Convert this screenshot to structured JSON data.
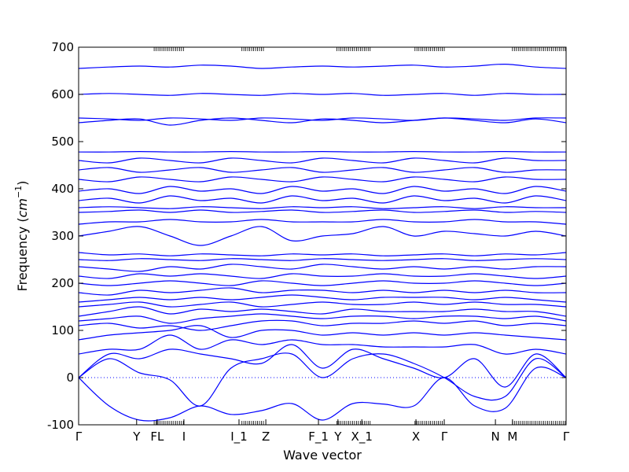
{
  "chart_data": {
    "type": "line",
    "title": "",
    "xlabel": "Wave vector",
    "ylabel_main": "Frequency (",
    "ylabel_unit": "cm",
    "ylabel_exp": "−1",
    "ylabel_close": ")",
    "ylim": [
      -100,
      700
    ],
    "yticks": [
      -100,
      0,
      100,
      200,
      300,
      400,
      500,
      600,
      700
    ],
    "xlim": [
      0,
      1
    ],
    "grid": false,
    "line_color": "#0000ff",
    "zero_line": {
      "y": 0,
      "style": "dotted",
      "color": "#0000ff"
    },
    "high_symmetry_points": [
      {
        "label": "Γ",
        "x": 0.0
      },
      {
        "label": "Y",
        "x": 0.119
      },
      {
        "label": "FL",
        "x": 0.161
      },
      {
        "label": "I",
        "x": 0.216
      },
      {
        "label": "I_1",
        "x": 0.329
      },
      {
        "label": "Z",
        "x": 0.384
      },
      {
        "label": "F_1",
        "x": 0.492
      },
      {
        "label": "Y",
        "x": 0.532
      },
      {
        "label": "X_1",
        "x": 0.581
      },
      {
        "label": "X",
        "x": 0.692
      },
      {
        "label": "Γ",
        "x": 0.75
      },
      {
        "label": "N",
        "x": 0.855
      },
      {
        "label": "M",
        "x": 0.89
      },
      {
        "label": "Γ",
        "x": 1.0
      }
    ],
    "minor_tick_regions": [
      [
        0.155,
        0.215
      ],
      [
        0.335,
        0.38
      ],
      [
        0.53,
        0.6
      ],
      [
        0.69,
        0.75
      ],
      [
        0.89,
        1.0
      ]
    ],
    "x": [
      0.0,
      0.0625,
      0.125,
      0.1875,
      0.25,
      0.3125,
      0.375,
      0.4375,
      0.5,
      0.5625,
      0.625,
      0.6875,
      0.75,
      0.8125,
      0.875,
      0.9375,
      1.0
    ],
    "series": [
      {
        "values": [
          0,
          -60,
          -90,
          -85,
          -60,
          -78,
          -70,
          -55,
          -90,
          -55,
          -56,
          -60,
          0,
          -60,
          -65,
          20,
          0
        ]
      },
      {
        "values": [
          0,
          40,
          10,
          -5,
          -60,
          20,
          40,
          50,
          0,
          40,
          50,
          30,
          0,
          -40,
          -40,
          40,
          0
        ]
      },
      {
        "values": [
          0,
          50,
          40,
          60,
          50,
          40,
          30,
          70,
          20,
          60,
          40,
          20,
          0,
          40,
          -20,
          50,
          0
        ]
      },
      {
        "values": [
          50,
          60,
          60,
          90,
          60,
          80,
          70,
          80,
          70,
          70,
          65,
          65,
          65,
          70,
          50,
          60,
          50
        ]
      },
      {
        "values": [
          80,
          90,
          95,
          100,
          110,
          85,
          100,
          100,
          90,
          95,
          90,
          95,
          90,
          95,
          90,
          85,
          80
        ]
      },
      {
        "values": [
          110,
          115,
          105,
          110,
          100,
          110,
          120,
          120,
          110,
          115,
          115,
          120,
          115,
          120,
          110,
          115,
          110
        ]
      },
      {
        "values": [
          120,
          125,
          130,
          115,
          125,
          130,
          135,
          130,
          125,
          130,
          130,
          125,
          130,
          130,
          125,
          130,
          120
        ]
      },
      {
        "values": [
          130,
          140,
          150,
          135,
          145,
          140,
          145,
          140,
          135,
          145,
          140,
          140,
          140,
          145,
          140,
          140,
          130
        ]
      },
      {
        "values": [
          150,
          155,
          160,
          150,
          155,
          160,
          150,
          155,
          160,
          155,
          155,
          160,
          155,
          160,
          155,
          155,
          150
        ]
      },
      {
        "values": [
          160,
          165,
          170,
          165,
          170,
          165,
          170,
          175,
          170,
          165,
          170,
          170,
          170,
          165,
          170,
          165,
          160
        ]
      },
      {
        "values": [
          180,
          175,
          185,
          180,
          185,
          190,
          180,
          185,
          185,
          180,
          185,
          180,
          185,
          180,
          185,
          180,
          180
        ]
      },
      {
        "values": [
          200,
          195,
          200,
          205,
          200,
          195,
          205,
          200,
          195,
          200,
          205,
          200,
          200,
          205,
          200,
          195,
          200
        ]
      },
      {
        "values": [
          215,
          210,
          220,
          215,
          220,
          215,
          210,
          220,
          215,
          215,
          220,
          215,
          215,
          220,
          215,
          210,
          215
        ]
      },
      {
        "values": [
          235,
          230,
          225,
          235,
          230,
          240,
          235,
          230,
          240,
          235,
          230,
          235,
          230,
          235,
          230,
          235,
          235
        ]
      },
      {
        "values": [
          250,
          248,
          252,
          250,
          248,
          252,
          250,
          248,
          252,
          250,
          248,
          250,
          252,
          248,
          250,
          252,
          250
        ]
      },
      {
        "values": [
          265,
          260,
          262,
          258,
          262,
          260,
          258,
          262,
          260,
          262,
          258,
          260,
          262,
          258,
          262,
          260,
          265
        ]
      },
      {
        "values": [
          300,
          310,
          320,
          300,
          280,
          300,
          320,
          290,
          300,
          305,
          320,
          300,
          310,
          305,
          300,
          310,
          300
        ]
      },
      {
        "values": [
          325,
          330,
          330,
          335,
          330,
          330,
          335,
          330,
          330,
          330,
          335,
          330,
          330,
          335,
          330,
          330,
          325
        ]
      },
      {
        "values": [
          350,
          352,
          355,
          350,
          355,
          350,
          352,
          355,
          350,
          352,
          355,
          350,
          352,
          355,
          350,
          352,
          350
        ]
      },
      {
        "values": [
          360,
          362,
          360,
          358,
          362,
          360,
          358,
          362,
          360,
          362,
          358,
          360,
          362,
          358,
          362,
          360,
          360
        ]
      },
      {
        "values": [
          375,
          380,
          370,
          385,
          375,
          380,
          370,
          385,
          375,
          380,
          370,
          385,
          375,
          380,
          370,
          385,
          375
        ]
      },
      {
        "values": [
          395,
          400,
          390,
          405,
          395,
          400,
          390,
          405,
          395,
          400,
          390,
          405,
          395,
          400,
          390,
          405,
          395
        ]
      },
      {
        "values": [
          420,
          415,
          425,
          420,
          415,
          425,
          420,
          415,
          425,
          420,
          415,
          425,
          420,
          415,
          425,
          420,
          420
        ]
      },
      {
        "values": [
          440,
          445,
          435,
          440,
          445,
          435,
          440,
          445,
          435,
          440,
          445,
          435,
          440,
          445,
          435,
          440,
          440
        ]
      },
      {
        "values": [
          460,
          455,
          465,
          460,
          455,
          465,
          460,
          455,
          465,
          460,
          455,
          465,
          460,
          455,
          465,
          460,
          460
        ]
      },
      {
        "values": [
          478,
          478,
          479,
          478,
          478,
          479,
          478,
          478,
          479,
          478,
          478,
          479,
          478,
          478,
          479,
          478,
          478
        ]
      },
      {
        "values": [
          540,
          545,
          548,
          535,
          545,
          550,
          545,
          540,
          548,
          545,
          540,
          545,
          550,
          545,
          540,
          548,
          540
        ]
      },
      {
        "values": [
          550,
          548,
          545,
          550,
          548,
          545,
          550,
          548,
          545,
          550,
          548,
          545,
          550,
          548,
          545,
          550,
          550
        ]
      },
      {
        "values": [
          600,
          602,
          600,
          598,
          602,
          600,
          598,
          602,
          600,
          602,
          598,
          600,
          602,
          598,
          602,
          600,
          600
        ]
      },
      {
        "values": [
          655,
          658,
          660,
          658,
          662,
          660,
          655,
          658,
          660,
          658,
          660,
          662,
          658,
          660,
          664,
          658,
          655
        ]
      }
    ]
  }
}
